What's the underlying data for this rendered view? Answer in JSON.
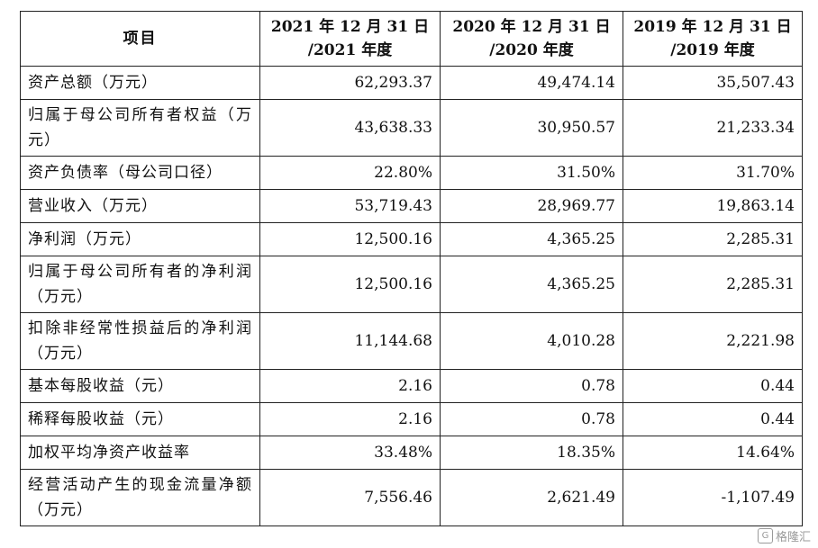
{
  "table": {
    "headers": {
      "item": "项目",
      "y2021_line1": "2021 年 12 月 31 日",
      "y2021_line2": "/2021 年度",
      "y2020_line1": "2020 年 12 月 31 日",
      "y2020_line2": "/2020 年度",
      "y2019_line1": "2019 年 12 月 31 日",
      "y2019_line2": "/2019 年度"
    },
    "rows": [
      {
        "label": "资产总额（万元）",
        "v2021": "62,293.37",
        "v2020": "49,474.14",
        "v2019": "35,507.43"
      },
      {
        "label": "归属于母公司所有者权益（万元）",
        "v2021": "43,638.33",
        "v2020": "30,950.57",
        "v2019": "21,233.34"
      },
      {
        "label": "资产负债率（母公司口径）",
        "v2021": "22.80%",
        "v2020": "31.50%",
        "v2019": "31.70%"
      },
      {
        "label": "营业收入（万元）",
        "v2021": "53,719.43",
        "v2020": "28,969.77",
        "v2019": "19,863.14"
      },
      {
        "label": "净利润（万元）",
        "v2021": "12,500.16",
        "v2020": "4,365.25",
        "v2019": "2,285.31"
      },
      {
        "label": "归属于母公司所有者的净利润（万元）",
        "v2021": "12,500.16",
        "v2020": "4,365.25",
        "v2019": "2,285.31"
      },
      {
        "label": "扣除非经常性损益后的净利润（万元）",
        "v2021": "11,144.68",
        "v2020": "4,010.28",
        "v2019": "2,221.98"
      },
      {
        "label": "基本每股收益（元）",
        "v2021": "2.16",
        "v2020": "0.78",
        "v2019": "0.44"
      },
      {
        "label": "稀释每股收益（元）",
        "v2021": "2.16",
        "v2020": "0.78",
        "v2019": "0.44"
      },
      {
        "label": "加权平均净资产收益率",
        "v2021": "33.48%",
        "v2020": "18.35%",
        "v2019": "14.64%"
      },
      {
        "label": "经营活动产生的现金流量净额（万元）",
        "v2021": "7,556.46",
        "v2020": "2,621.49",
        "v2019": "-1,107.49"
      }
    ]
  },
  "watermark": {
    "icon": "g-logo-icon",
    "icon_text": "G",
    "text": "格隆汇"
  }
}
